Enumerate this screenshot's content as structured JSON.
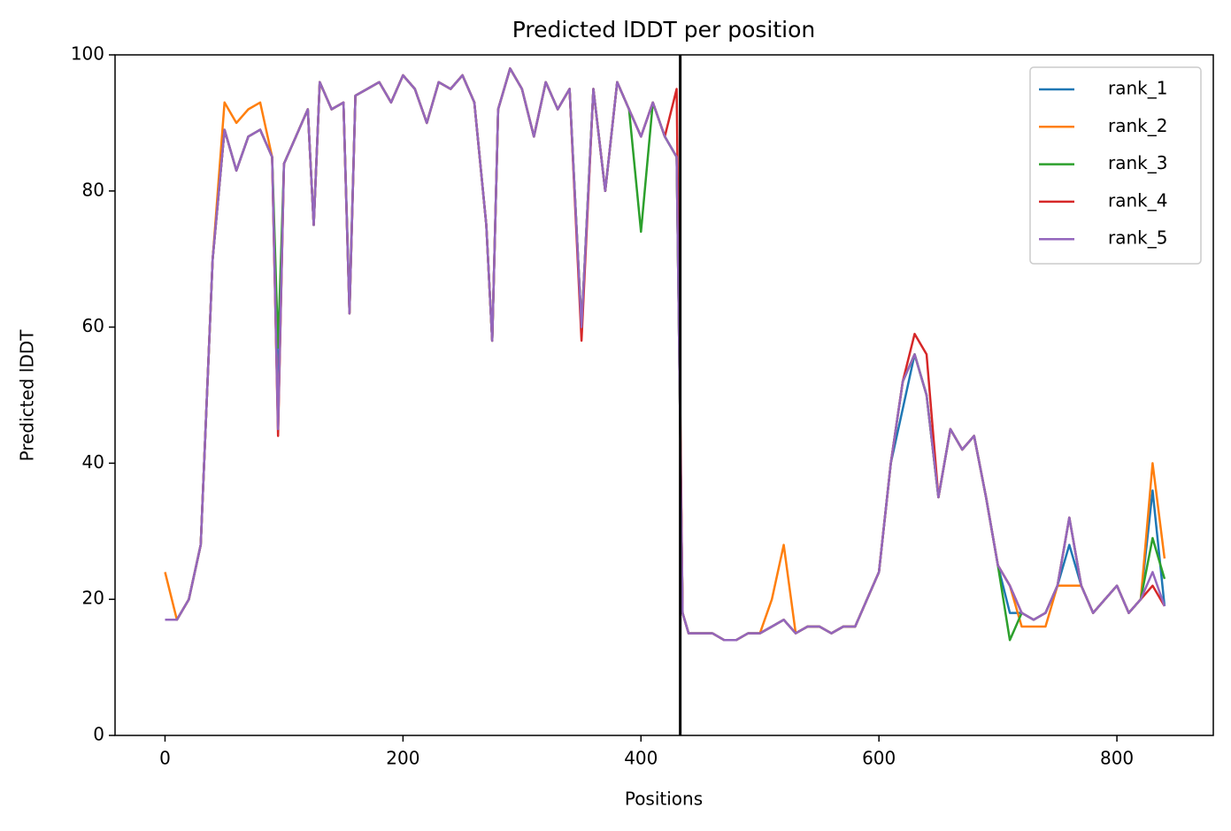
{
  "chart_data": {
    "type": "line",
    "title": "Predicted lDDT per position",
    "xlabel": "Positions",
    "ylabel": "Predicted lDDT",
    "x": [
      0,
      10,
      20,
      30,
      40,
      50,
      60,
      70,
      80,
      90,
      95,
      100,
      110,
      120,
      125,
      130,
      140,
      150,
      155,
      160,
      170,
      180,
      190,
      200,
      210,
      220,
      230,
      240,
      250,
      260,
      270,
      275,
      280,
      290,
      300,
      310,
      320,
      330,
      340,
      350,
      360,
      370,
      380,
      390,
      400,
      410,
      420,
      430,
      435,
      440,
      450,
      460,
      470,
      480,
      490,
      500,
      510,
      520,
      530,
      540,
      550,
      560,
      570,
      580,
      590,
      600,
      610,
      620,
      630,
      640,
      650,
      660,
      670,
      680,
      690,
      700,
      710,
      720,
      730,
      740,
      750,
      760,
      770,
      780,
      790,
      800,
      810,
      820,
      830,
      840
    ],
    "series": [
      {
        "name": "rank_1",
        "color": "#1f77b4",
        "values": [
          17,
          17,
          20,
          28,
          70,
          89,
          83,
          88,
          89,
          85,
          50,
          84,
          88,
          92,
          75,
          96,
          92,
          93,
          63,
          94,
          95,
          96,
          93,
          97,
          95,
          90,
          96,
          95,
          97,
          93,
          75,
          58,
          92,
          98,
          95,
          88,
          96,
          92,
          95,
          60,
          95,
          80,
          96,
          92,
          88,
          93,
          88,
          85,
          18,
          15,
          15,
          15,
          14,
          14,
          15,
          15,
          16,
          17,
          15,
          16,
          16,
          15,
          16,
          16,
          20,
          24,
          40,
          48,
          56,
          50,
          35,
          45,
          42,
          44,
          35,
          25,
          18,
          18,
          17,
          18,
          22,
          28,
          22,
          18,
          20,
          22,
          18,
          20,
          36,
          19
        ]
      },
      {
        "name": "rank_2",
        "color": "#ff7f0e",
        "values": [
          24,
          17,
          20,
          28,
          70,
          93,
          90,
          92,
          93,
          85,
          45,
          84,
          88,
          92,
          75,
          96,
          92,
          93,
          62,
          94,
          95,
          96,
          93,
          97,
          95,
          90,
          96,
          95,
          97,
          93,
          75,
          58,
          92,
          98,
          95,
          88,
          96,
          92,
          95,
          60,
          95,
          80,
          96,
          92,
          88,
          93,
          88,
          85,
          18,
          15,
          15,
          15,
          14,
          14,
          15,
          15,
          20,
          28,
          15,
          16,
          16,
          15,
          16,
          16,
          20,
          24,
          40,
          52,
          56,
          50,
          35,
          45,
          42,
          44,
          35,
          25,
          22,
          16,
          16,
          16,
          22,
          22,
          22,
          18,
          20,
          22,
          18,
          20,
          40,
          26
        ]
      },
      {
        "name": "rank_3",
        "color": "#2ca02c",
        "values": [
          17,
          17,
          20,
          28,
          70,
          89,
          83,
          88,
          89,
          85,
          57,
          84,
          88,
          92,
          75,
          96,
          92,
          93,
          62,
          94,
          95,
          96,
          93,
          97,
          95,
          90,
          96,
          95,
          97,
          93,
          75,
          58,
          92,
          98,
          95,
          88,
          96,
          92,
          95,
          60,
          95,
          80,
          96,
          92,
          74,
          93,
          88,
          85,
          18,
          15,
          15,
          15,
          14,
          14,
          15,
          15,
          16,
          17,
          15,
          16,
          16,
          15,
          16,
          16,
          20,
          24,
          40,
          52,
          56,
          50,
          35,
          45,
          42,
          44,
          35,
          25,
          14,
          18,
          17,
          18,
          22,
          32,
          22,
          18,
          20,
          22,
          18,
          20,
          29,
          23
        ]
      },
      {
        "name": "rank_4",
        "color": "#d62728",
        "values": [
          17,
          17,
          20,
          28,
          70,
          89,
          83,
          88,
          89,
          85,
          44,
          84,
          88,
          92,
          75,
          96,
          92,
          93,
          62,
          94,
          95,
          96,
          93,
          97,
          95,
          90,
          96,
          95,
          97,
          93,
          75,
          58,
          92,
          98,
          95,
          88,
          96,
          92,
          95,
          58,
          95,
          80,
          96,
          92,
          88,
          93,
          88,
          95,
          18,
          15,
          15,
          15,
          14,
          14,
          15,
          15,
          16,
          17,
          15,
          16,
          16,
          15,
          16,
          16,
          20,
          24,
          40,
          52,
          59,
          56,
          35,
          45,
          42,
          44,
          35,
          25,
          22,
          18,
          17,
          18,
          22,
          32,
          22,
          18,
          20,
          22,
          18,
          20,
          22,
          19
        ]
      },
      {
        "name": "rank_5",
        "color": "#9467bd",
        "values": [
          17,
          17,
          20,
          28,
          70,
          89,
          83,
          88,
          89,
          85,
          45,
          84,
          88,
          92,
          75,
          96,
          92,
          93,
          62,
          94,
          95,
          96,
          93,
          97,
          95,
          90,
          96,
          95,
          97,
          93,
          75,
          58,
          92,
          98,
          95,
          88,
          96,
          92,
          95,
          60,
          95,
          80,
          96,
          92,
          88,
          93,
          88,
          85,
          18,
          15,
          15,
          15,
          14,
          14,
          15,
          15,
          16,
          17,
          15,
          16,
          16,
          15,
          16,
          16,
          20,
          24,
          40,
          52,
          56,
          50,
          35,
          45,
          42,
          44,
          35,
          25,
          22,
          18,
          17,
          18,
          22,
          32,
          22,
          18,
          20,
          22,
          18,
          20,
          24,
          19
        ]
      }
    ],
    "vlines": [
      433
    ],
    "xlim": [
      -42,
      881
    ],
    "xticks": [
      0,
      200,
      400,
      600,
      800
    ],
    "ylim": [
      0,
      100
    ],
    "yticks": [
      0,
      20,
      40,
      60,
      80,
      100
    ],
    "legend": "upper right"
  }
}
